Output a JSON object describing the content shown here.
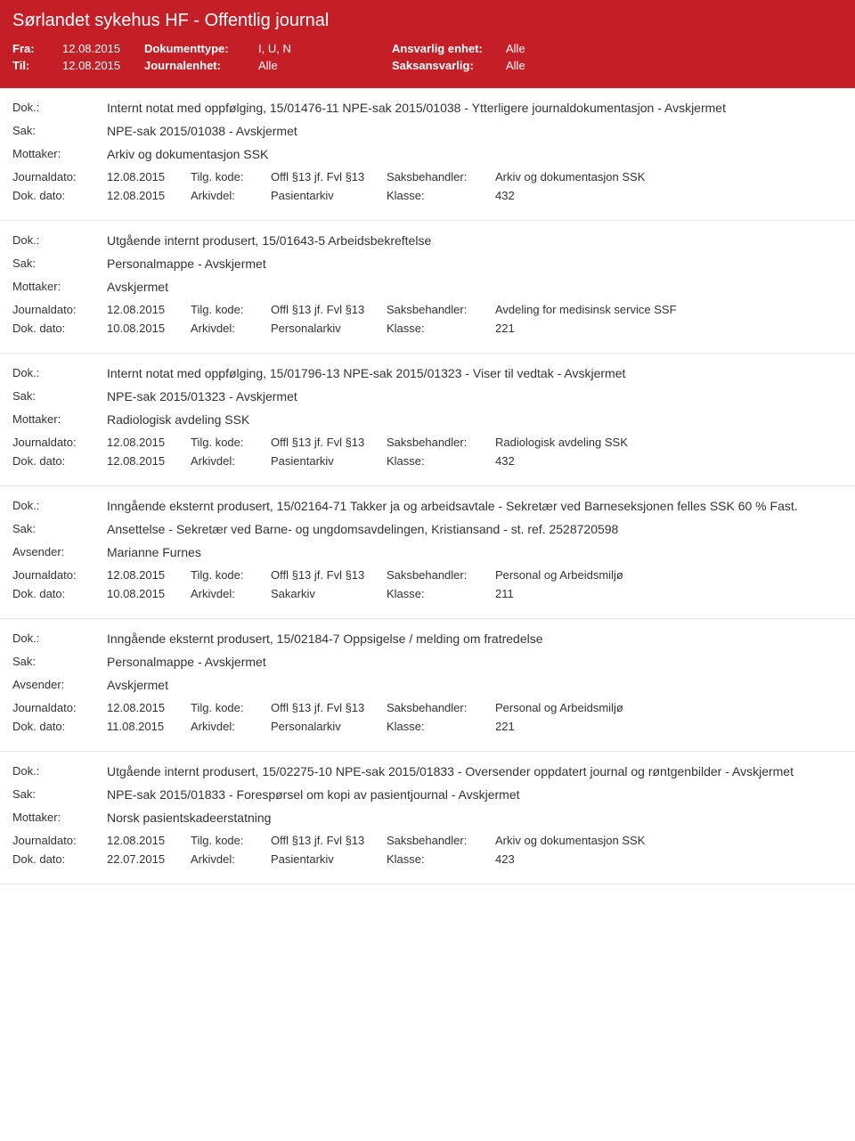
{
  "header": {
    "title": "Sørlandet sykehus HF - Offentlig journal",
    "fra_label": "Fra:",
    "fra_value": "12.08.2015",
    "til_label": "Til:",
    "til_value": "12.08.2015",
    "doktype_label": "Dokumenttype:",
    "doktype_value": "I, U, N",
    "journalenhet_label": "Journalenhet:",
    "journalenhet_value": "Alle",
    "ansvarlig_label": "Ansvarlig enhet:",
    "ansvarlig_value": "Alle",
    "saksansvarlig_label": "Saksansvarlig:",
    "saksansvarlig_value": "Alle"
  },
  "labels": {
    "dok": "Dok.:",
    "sak": "Sak:",
    "mottaker": "Mottaker:",
    "avsender": "Avsender:",
    "journaldato": "Journaldato:",
    "dokdato": "Dok. dato:",
    "tilgkode": "Tilg. kode:",
    "arkivdel": "Arkivdel:",
    "saksbehandler": "Saksbehandler:",
    "klasse": "Klasse:"
  },
  "entries": [
    {
      "dok": "Internt notat med oppfølging, 15/01476-11 NPE-sak 2015/01038 - Ytterligere journaldokumentasjon - Avskjermet",
      "sak": "NPE-sak 2015/01038 - Avskjermet",
      "party_label": "Mottaker:",
      "party_value": "Arkiv og dokumentasjon SSK",
      "journaldato": "12.08.2015",
      "tilgkode": "Offl §13 jf. Fvl §13",
      "saksbehandler": "Arkiv og dokumentasjon SSK",
      "dokdato": "12.08.2015",
      "arkivdel": "Pasientarkiv",
      "klasse": "432"
    },
    {
      "dok": "Utgående internt produsert, 15/01643-5 Arbeidsbekreftelse",
      "sak": "Personalmappe - Avskjermet",
      "party_label": "Mottaker:",
      "party_value": "Avskjermet",
      "journaldato": "12.08.2015",
      "tilgkode": "Offl §13 jf. Fvl §13",
      "saksbehandler": "Avdeling for medisinsk service SSF",
      "dokdato": "10.08.2015",
      "arkivdel": "Personalarkiv",
      "klasse": "221"
    },
    {
      "dok": "Internt notat med oppfølging, 15/01796-13 NPE-sak 2015/01323 - Viser til vedtak - Avskjermet",
      "sak": "NPE-sak 2015/01323 - Avskjermet",
      "party_label": "Mottaker:",
      "party_value": "Radiologisk avdeling SSK",
      "journaldato": "12.08.2015",
      "tilgkode": "Offl §13 jf. Fvl §13",
      "saksbehandler": "Radiologisk avdeling SSK",
      "dokdato": "12.08.2015",
      "arkivdel": "Pasientarkiv",
      "klasse": "432"
    },
    {
      "dok": "Inngående eksternt produsert, 15/02164-71 Takker ja og arbeidsavtale - Sekretær ved Barneseksjonen felles SSK 60 % Fast.",
      "sak": "Ansettelse - Sekretær ved Barne- og ungdomsavdelingen, Kristiansand - st. ref. 2528720598",
      "party_label": "Avsender:",
      "party_value": "Marianne Furnes",
      "journaldato": "12.08.2015",
      "tilgkode": "Offl §13 jf. Fvl §13",
      "saksbehandler": "Personal og Arbeidsmiljø",
      "dokdato": "10.08.2015",
      "arkivdel": "Sakarkiv",
      "klasse": "211"
    },
    {
      "dok": "Inngående eksternt produsert, 15/02184-7 Oppsigelse / melding om fratredelse",
      "sak": "Personalmappe - Avskjermet",
      "party_label": "Avsender:",
      "party_value": "Avskjermet",
      "journaldato": "12.08.2015",
      "tilgkode": "Offl §13 jf. Fvl §13",
      "saksbehandler": "Personal og Arbeidsmiljø",
      "dokdato": "11.08.2015",
      "arkivdel": "Personalarkiv",
      "klasse": "221"
    },
    {
      "dok": "Utgående internt produsert, 15/02275-10 NPE-sak 2015/01833 - Oversender oppdatert journal og røntgenbilder - Avskjermet",
      "sak": "NPE-sak 2015/01833 - Forespørsel om kopi av pasientjournal - Avskjermet",
      "party_label": "Mottaker:",
      "party_value": "Norsk pasientskadeerstatning",
      "journaldato": "12.08.2015",
      "tilgkode": "Offl §13 jf. Fvl §13",
      "saksbehandler": "Arkiv og dokumentasjon SSK",
      "dokdato": "22.07.2015",
      "arkivdel": "Pasientarkiv",
      "klasse": "423"
    }
  ]
}
